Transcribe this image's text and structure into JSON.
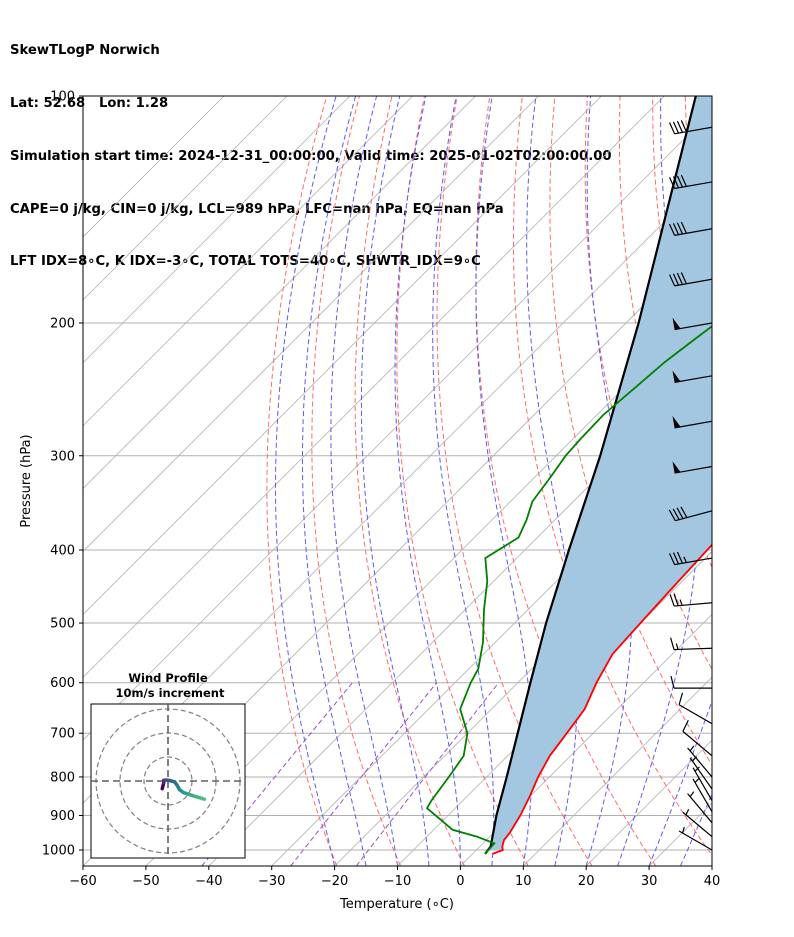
{
  "header": {
    "title": "SkewTLogP Norwich",
    "location": "Lat: 52.68   Lon: 1.28",
    "times": "Simulation start time: 2024-12-31_00:00:00, Valid time: 2025-01-02T02:00:00.00",
    "params": "CAPE=0 j/kg, CIN=0 j/kg, LCL=989 hPa, LFC=nan hPa, EQ=nan hPa",
    "indices": "LFT IDX=8∘C, K IDX=-3∘C, TOTAL TOTS=40∘C, SHWTR_IDX=9∘C"
  },
  "chart_data": {
    "type": "line",
    "subtype": "skew-T log-p",
    "xlabel": "Temperature (∘C)",
    "ylabel": "Pressure (hPa)",
    "xlim": [
      -60,
      40
    ],
    "ylim": [
      1050,
      100
    ],
    "yscale": "log",
    "xticks": [
      "−60",
      "−50",
      "−40",
      "−30",
      "−20",
      "−10",
      "0",
      "10",
      "20",
      "30",
      "40"
    ],
    "yticks": [
      "100",
      "200",
      "300",
      "400",
      "500",
      "600",
      "700",
      "800",
      "900",
      "1000"
    ],
    "colors": {
      "temperature": "#ff0000",
      "dewpoint": "#008000",
      "parcel": "#000000",
      "cape_fill": "#a3c7e0",
      "dry_adiabats": "#ff6a6a",
      "moist_adiabats": "#5a5af5",
      "mixing_ratio": "#9b4fc8",
      "isotherms": "#b0b0b0"
    },
    "series": [
      {
        "key": "temperature",
        "points": [
          [
            3.2,
            1012
          ],
          [
            4.2,
            1000
          ],
          [
            3.6,
            990
          ],
          [
            2.8,
            970
          ],
          [
            2.6,
            950
          ],
          [
            1.5,
            900
          ],
          [
            0,
            850
          ],
          [
            -1.8,
            800
          ],
          [
            -3.3,
            750
          ],
          [
            -4.2,
            700
          ],
          [
            -5.2,
            650
          ],
          [
            -7.5,
            600
          ],
          [
            -9.5,
            550
          ],
          [
            -10,
            500
          ],
          [
            -10.5,
            450
          ],
          [
            -11,
            400
          ],
          [
            -11.5,
            350
          ],
          [
            -12,
            300
          ],
          [
            -12,
            250
          ],
          [
            -11.8,
            225
          ],
          [
            -11,
            200
          ],
          [
            -9,
            180
          ],
          [
            -7.5,
            160
          ],
          [
            -6,
            150
          ],
          [
            -4,
            140
          ],
          [
            -2,
            130
          ],
          [
            0,
            120
          ],
          [
            1.5,
            110
          ],
          [
            2.8,
            100
          ]
        ]
      },
      {
        "key": "dewpoint",
        "points": [
          [
            2,
            1012
          ],
          [
            1.8,
            980
          ],
          [
            -2,
            960
          ],
          [
            -7,
            940
          ],
          [
            -14.5,
            880
          ],
          [
            -15,
            860
          ],
          [
            -16,
            800
          ],
          [
            -17,
            750
          ],
          [
            -20,
            700
          ],
          [
            -25,
            650
          ],
          [
            -27.5,
            600
          ],
          [
            -28.5,
            575
          ],
          [
            -32,
            530
          ],
          [
            -37,
            480
          ],
          [
            -41,
            440
          ],
          [
            -45,
            410
          ],
          [
            -43,
            385
          ],
          [
            -44.5,
            365
          ],
          [
            -46.5,
            345
          ],
          [
            -47.5,
            320
          ],
          [
            -48.5,
            300
          ],
          [
            -48.8,
            285
          ],
          [
            -49,
            265
          ],
          [
            -48.5,
            250
          ],
          [
            -47.6,
            225
          ],
          [
            -46.5,
            210
          ],
          [
            -45.2,
            195
          ],
          [
            -45,
            180
          ],
          [
            -46,
            165
          ],
          [
            -47,
            155
          ],
          [
            -45,
            145
          ],
          [
            -43,
            130
          ],
          [
            -41,
            120
          ],
          [
            -38,
            110
          ],
          [
            -36,
            100
          ]
        ]
      },
      {
        "key": "parcel",
        "points": [
          [
            2,
            1012
          ],
          [
            1.7,
            989
          ],
          [
            -2.3,
            900
          ],
          [
            -6.8,
            800
          ],
          [
            -12,
            700
          ],
          [
            -18,
            600
          ],
          [
            -25,
            500
          ],
          [
            -33,
            400
          ],
          [
            -43,
            300
          ],
          [
            -58,
            200
          ],
          [
            -85,
            100
          ]
        ]
      }
    ],
    "wind_profile": {
      "title": "Wind Profile",
      "subtitle": "10m/s increment",
      "points": [
        [
          -1.2,
          1.6
        ],
        [
          -0.9,
          0.4
        ],
        [
          -0.9,
          -0.1
        ],
        [
          -0.4,
          -0.2
        ],
        [
          0.4,
          -0.1
        ],
        [
          1.4,
          0.2
        ],
        [
          1.9,
          0.9
        ],
        [
          2.4,
          1.8
        ],
        [
          3.2,
          2.4
        ],
        [
          4.4,
          2.8
        ],
        [
          5.6,
          3.2
        ],
        [
          7.0,
          3.6
        ],
        [
          7.6,
          3.8
        ]
      ]
    },
    "wind_barbs": [
      {
        "p": 110,
        "dir": 260,
        "kts": 40
      },
      {
        "p": 130,
        "dir": 260,
        "kts": 40
      },
      {
        "p": 150,
        "dir": 260,
        "kts": 40
      },
      {
        "p": 175,
        "dir": 260,
        "kts": 40
      },
      {
        "p": 200,
        "dir": 260,
        "kts": 50
      },
      {
        "p": 235,
        "dir": 260,
        "kts": 50
      },
      {
        "p": 270,
        "dir": 260,
        "kts": 50
      },
      {
        "p": 310,
        "dir": 260,
        "kts": 50
      },
      {
        "p": 355,
        "dir": 255,
        "kts": 40
      },
      {
        "p": 410,
        "dir": 260,
        "kts": 35
      },
      {
        "p": 470,
        "dir": 265,
        "kts": 25
      },
      {
        "p": 540,
        "dir": 268,
        "kts": 15
      },
      {
        "p": 610,
        "dir": 270,
        "kts": 10
      },
      {
        "p": 680,
        "dir": 300,
        "kts": 10
      },
      {
        "p": 750,
        "dir": 310,
        "kts": 10
      },
      {
        "p": 800,
        "dir": 320,
        "kts": 5
      },
      {
        "p": 830,
        "dir": 325,
        "kts": 5
      },
      {
        "p": 860,
        "dir": 330,
        "kts": 5
      },
      {
        "p": 890,
        "dir": 330,
        "kts": 5
      },
      {
        "p": 920,
        "dir": 320,
        "kts": 5
      },
      {
        "p": 960,
        "dir": 310,
        "kts": 5
      },
      {
        "p": 1000,
        "dir": 300,
        "kts": 5
      }
    ]
  }
}
